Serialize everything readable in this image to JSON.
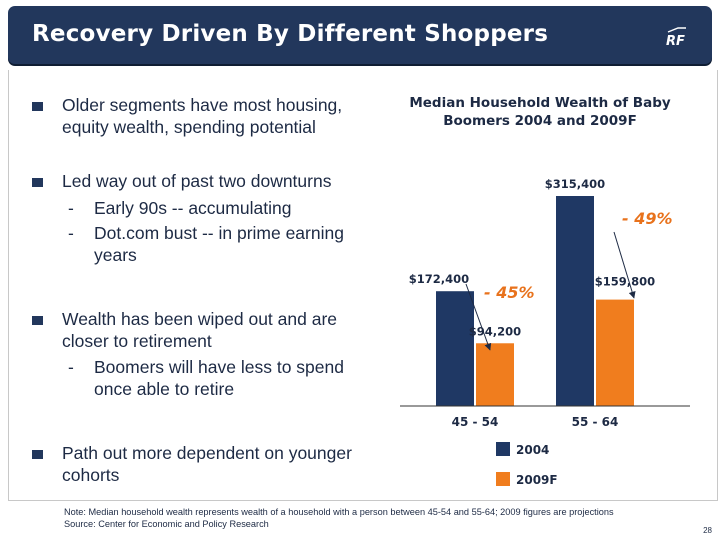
{
  "header": {
    "title": "Recovery Driven By Different Shoppers",
    "logo_text": "RF"
  },
  "bullets": [
    {
      "text": "Older segments have most housing, equity wealth, spending potential",
      "subs": []
    },
    {
      "text": "Led way out of past two downturns",
      "subs": [
        "Early 90s -- accumulating",
        "Dot.com bust -- in prime earning years"
      ]
    },
    {
      "text": "Wealth has been wiped out and are closer to retirement",
      "subs": [
        "Boomers will have less to spend once able to retire"
      ]
    },
    {
      "text": "Path out more dependent on younger cohorts",
      "subs": []
    }
  ],
  "chart_data": {
    "type": "bar",
    "title": "Median Household Wealth of Baby Boomers 2004 and 2009F",
    "categories": [
      "45 - 54",
      "55 - 64"
    ],
    "series": [
      {
        "name": "2004",
        "values": [
          172400,
          315400
        ],
        "labels": [
          "$172,400",
          "$315,400"
        ],
        "color": "#1f3864"
      },
      {
        "name": "2009F",
        "values": [
          94200,
          159800
        ],
        "labels": [
          "$94,200",
          "$159,800"
        ],
        "color": "#f07d1e"
      }
    ],
    "annotations": [
      "- 45%",
      "- 49%"
    ],
    "annotation_color": "#e8721c"
  },
  "footnote": {
    "note": "Note: Median household wealth represents wealth of a household with a person between 45-54 and 55-64; 2009 figures are projections",
    "source": "Source: Center for Economic and Policy Research"
  },
  "page_number": "28"
}
